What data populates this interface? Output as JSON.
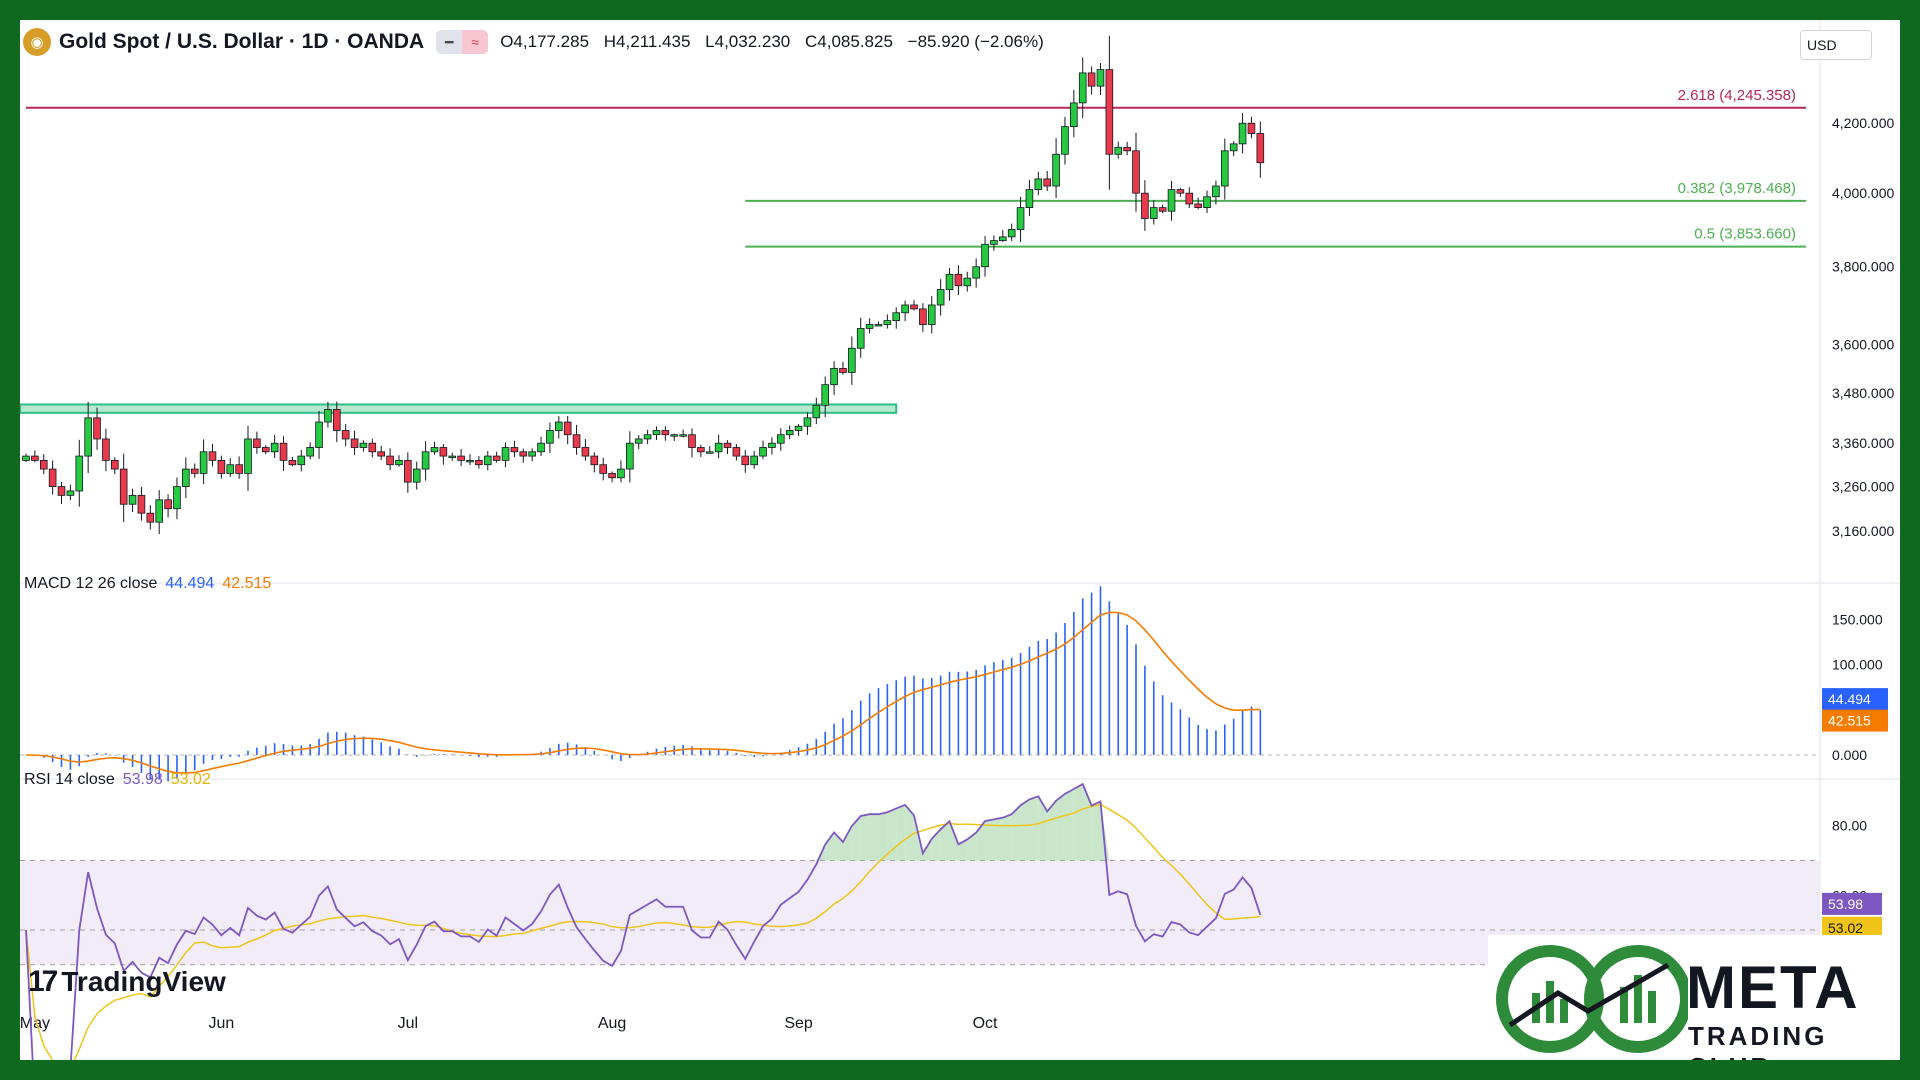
{
  "header": {
    "logo_glyph": "◉",
    "title": "Gold Spot / U.S. Dollar · 1D · OANDA",
    "ohlc": {
      "open": "O4,177.285",
      "high": "H4,211.435",
      "low": "L4,032.230",
      "close": "C4,085.825",
      "change": "−85.920 (−2.06%)"
    },
    "currency": "USD"
  },
  "colors": {
    "up": "#26c940",
    "down": "#e83a4a",
    "macd": "#2962ff",
    "signal": "#f57c00",
    "rsi": "#7e57c2",
    "rsi_ma": "#f0c419",
    "fib_top": "#b5265a",
    "fib": "#4caf50",
    "resistance": "#2ebd85",
    "frame": "#0f6a1f"
  },
  "chart_data": [
    {
      "type": "candlestick",
      "title": "Gold Spot / U.S. Dollar · 1D · OANDA",
      "y_scale": "log",
      "ylim": [
        3080,
        4420
      ],
      "y_ticks": [
        3160,
        3260,
        3360,
        3480,
        3600,
        3800,
        4000,
        4200
      ],
      "y_tick_labels": [
        "3,160.000",
        "3,260.000",
        "3,360.000",
        "3,480.000",
        "3,600.000",
        "3,800.000",
        "4,000.000",
        "4,200.000"
      ],
      "x_labels": [
        "May",
        "Jun",
        "Jul",
        "Aug",
        "Sep",
        "Oct"
      ],
      "x_label_index": [
        1,
        22,
        43,
        66,
        87,
        108
      ],
      "resistance_zone": {
        "from": 3432,
        "to": 3452,
        "end_index": 98
      },
      "fib_levels": [
        {
          "label": "2.618 (4,245.358)",
          "value": 4245.358,
          "start_index": 0
        },
        {
          "label": "0.382 (3,978.468)",
          "value": 3978.468,
          "start_index": 81
        },
        {
          "label": "0.5 (3,853.660)",
          "value": 3853.66,
          "start_index": 81
        }
      ],
      "closes": [
        3330,
        3320,
        3300,
        3260,
        3240,
        3250,
        3330,
        3420,
        3370,
        3320,
        3300,
        3220,
        3240,
        3200,
        3180,
        3230,
        3210,
        3260,
        3300,
        3290,
        3340,
        3320,
        3290,
        3310,
        3290,
        3370,
        3350,
        3340,
        3360,
        3320,
        3310,
        3330,
        3350,
        3410,
        3440,
        3390,
        3370,
        3350,
        3360,
        3340,
        3330,
        3310,
        3320,
        3270,
        3300,
        3340,
        3350,
        3330,
        3330,
        3320,
        3320,
        3310,
        3330,
        3320,
        3350,
        3340,
        3330,
        3340,
        3360,
        3390,
        3410,
        3380,
        3350,
        3330,
        3310,
        3290,
        3280,
        3300,
        3360,
        3370,
        3380,
        3390,
        3380,
        3380,
        3380,
        3350,
        3340,
        3340,
        3360,
        3350,
        3330,
        3310,
        3330,
        3350,
        3360,
        3380,
        3390,
        3400,
        3420,
        3450,
        3500,
        3540,
        3530,
        3590,
        3640,
        3650,
        3650,
        3660,
        3680,
        3700,
        3690,
        3650,
        3700,
        3740,
        3780,
        3750,
        3770,
        3800,
        3860,
        3870,
        3880,
        3900,
        3960,
        4010,
        4040,
        4020,
        4110,
        4190,
        4260,
        4350,
        4310,
        4360,
        4110,
        4130,
        4120,
        4000,
        3930,
        3960,
        3950,
        4010,
        4000,
        3970,
        3960,
        3990,
        4020,
        4120,
        4140,
        4200,
        4170,
        4085.825
      ]
    },
    {
      "type": "bar",
      "title": "MACD 12 26 close",
      "macd_value": "44.494",
      "signal_value": "42.515",
      "ylim": [
        -10,
        185
      ],
      "y_ticks": [
        0,
        50,
        100,
        150
      ],
      "y_tick_labels": [
        "0.000",
        "",
        "100.000",
        "150.000"
      ]
    },
    {
      "type": "line",
      "title": "RSI 14 close",
      "rsi_value": "53.98",
      "ma_value": "53.02",
      "ylim": [
        27,
        92
      ],
      "band": [
        40,
        70
      ],
      "middle": 50,
      "y_ticks": [
        60,
        80
      ],
      "y_tick_labels": [
        "60.00",
        "80.00"
      ]
    }
  ],
  "watermark": {
    "mark": "17",
    "name": "TradingView"
  },
  "brand": {
    "name": "META",
    "sub": "TRADING CLUB"
  }
}
